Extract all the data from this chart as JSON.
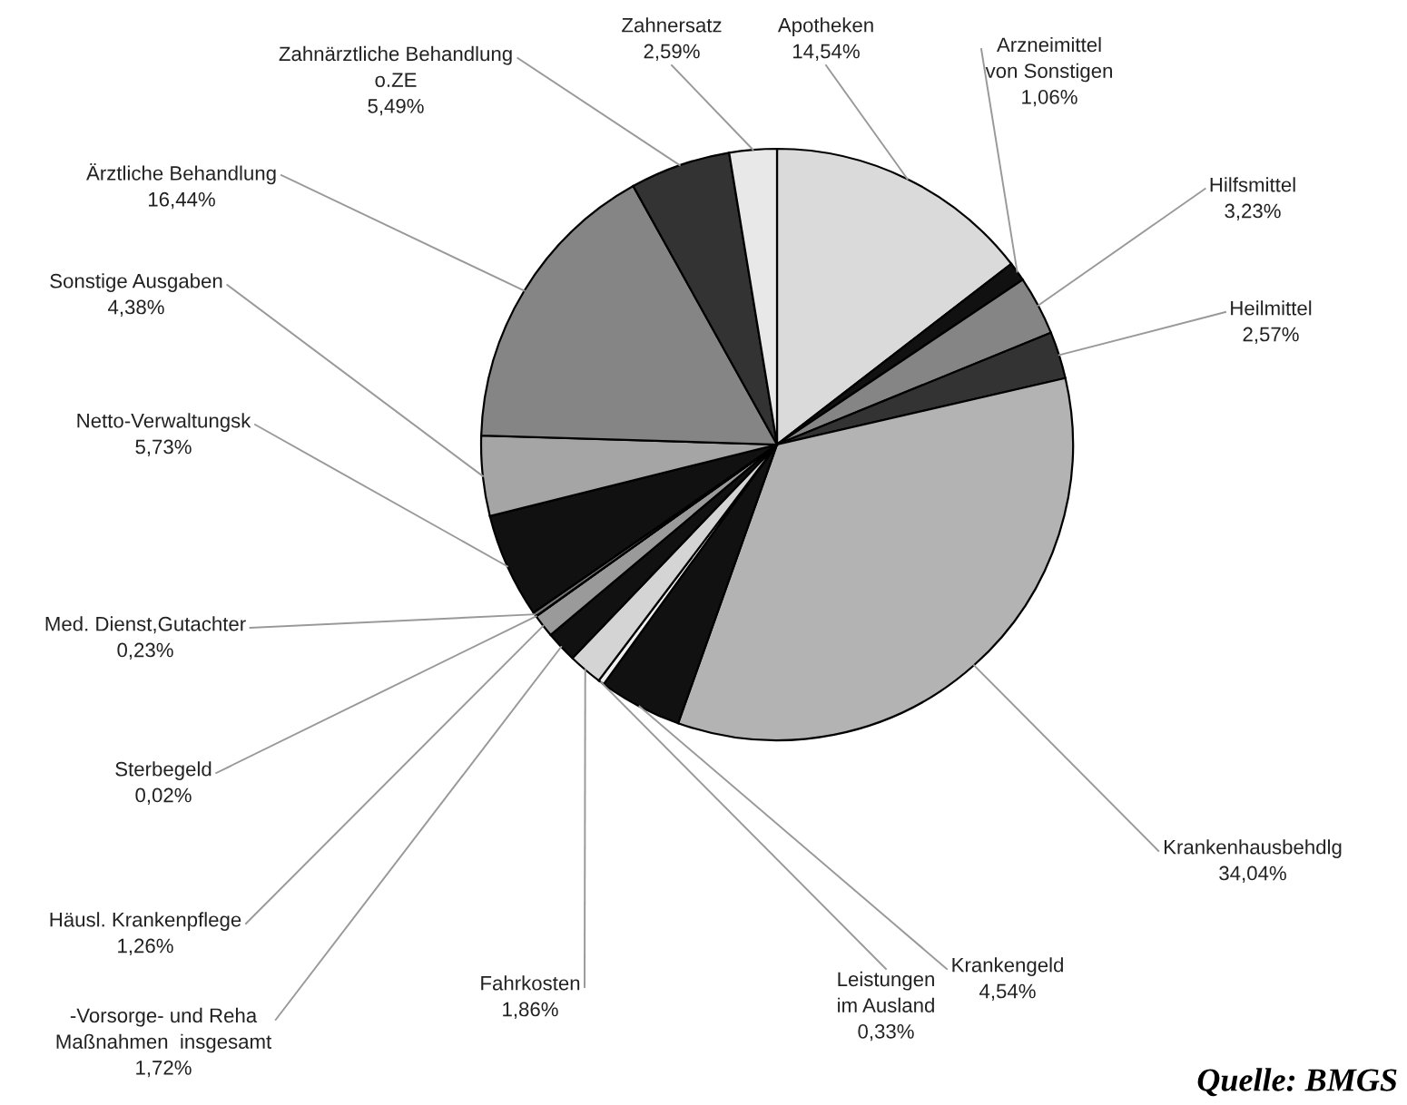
{
  "chart_data": {
    "type": "pie",
    "categories": [
      "Apotheken",
      "Arzneimittel\nvon Sonstigen",
      "Hilfsmittel",
      "Heilmittel",
      "Krankenhausbehdlg",
      "Krankengeld",
      "Leistungen\nim Ausland",
      "Fahrkosten",
      "-Vorsorge- und Reha\nMaßnahmen  insgesamt",
      "Häusl. Krankenpflege",
      "Sterbegeld",
      "Med. Dienst,Gutachter",
      "Netto-Verwaltungsk",
      "Sonstige Ausgaben",
      "Ärztliche Behandlung",
      "Zahnärztliche Behandlung\no.ZE",
      "Zahnersatz"
    ],
    "values": [
      14.54,
      1.06,
      3.23,
      2.57,
      34.04,
      4.54,
      0.33,
      1.86,
      1.72,
      1.26,
      0.02,
      0.23,
      5.73,
      4.38,
      16.44,
      5.49,
      2.59
    ],
    "value_labels": [
      "14,54%",
      "1,06%",
      "3,23%",
      "2,57%",
      "34,04%",
      "4,54%",
      "0,33%",
      "1,86%",
      "1,72%",
      "1,26%",
      "0,02%",
      "0,23%",
      "5,73%",
      "4,38%",
      "16,44%",
      "5,49%",
      "2,59%"
    ],
    "colors": [
      "#dadada",
      "#111111",
      "#858585",
      "#333333",
      "#b3b3b3",
      "#111111",
      "#f0f0f0",
      "#d4d4d4",
      "#111111",
      "#9a9a9a",
      "#555555",
      "#777777",
      "#111111",
      "#a5a5a5",
      "#858585",
      "#333333",
      "#e8e8e8"
    ],
    "annotations": [
      "Quelle: BMGS"
    ]
  }
}
